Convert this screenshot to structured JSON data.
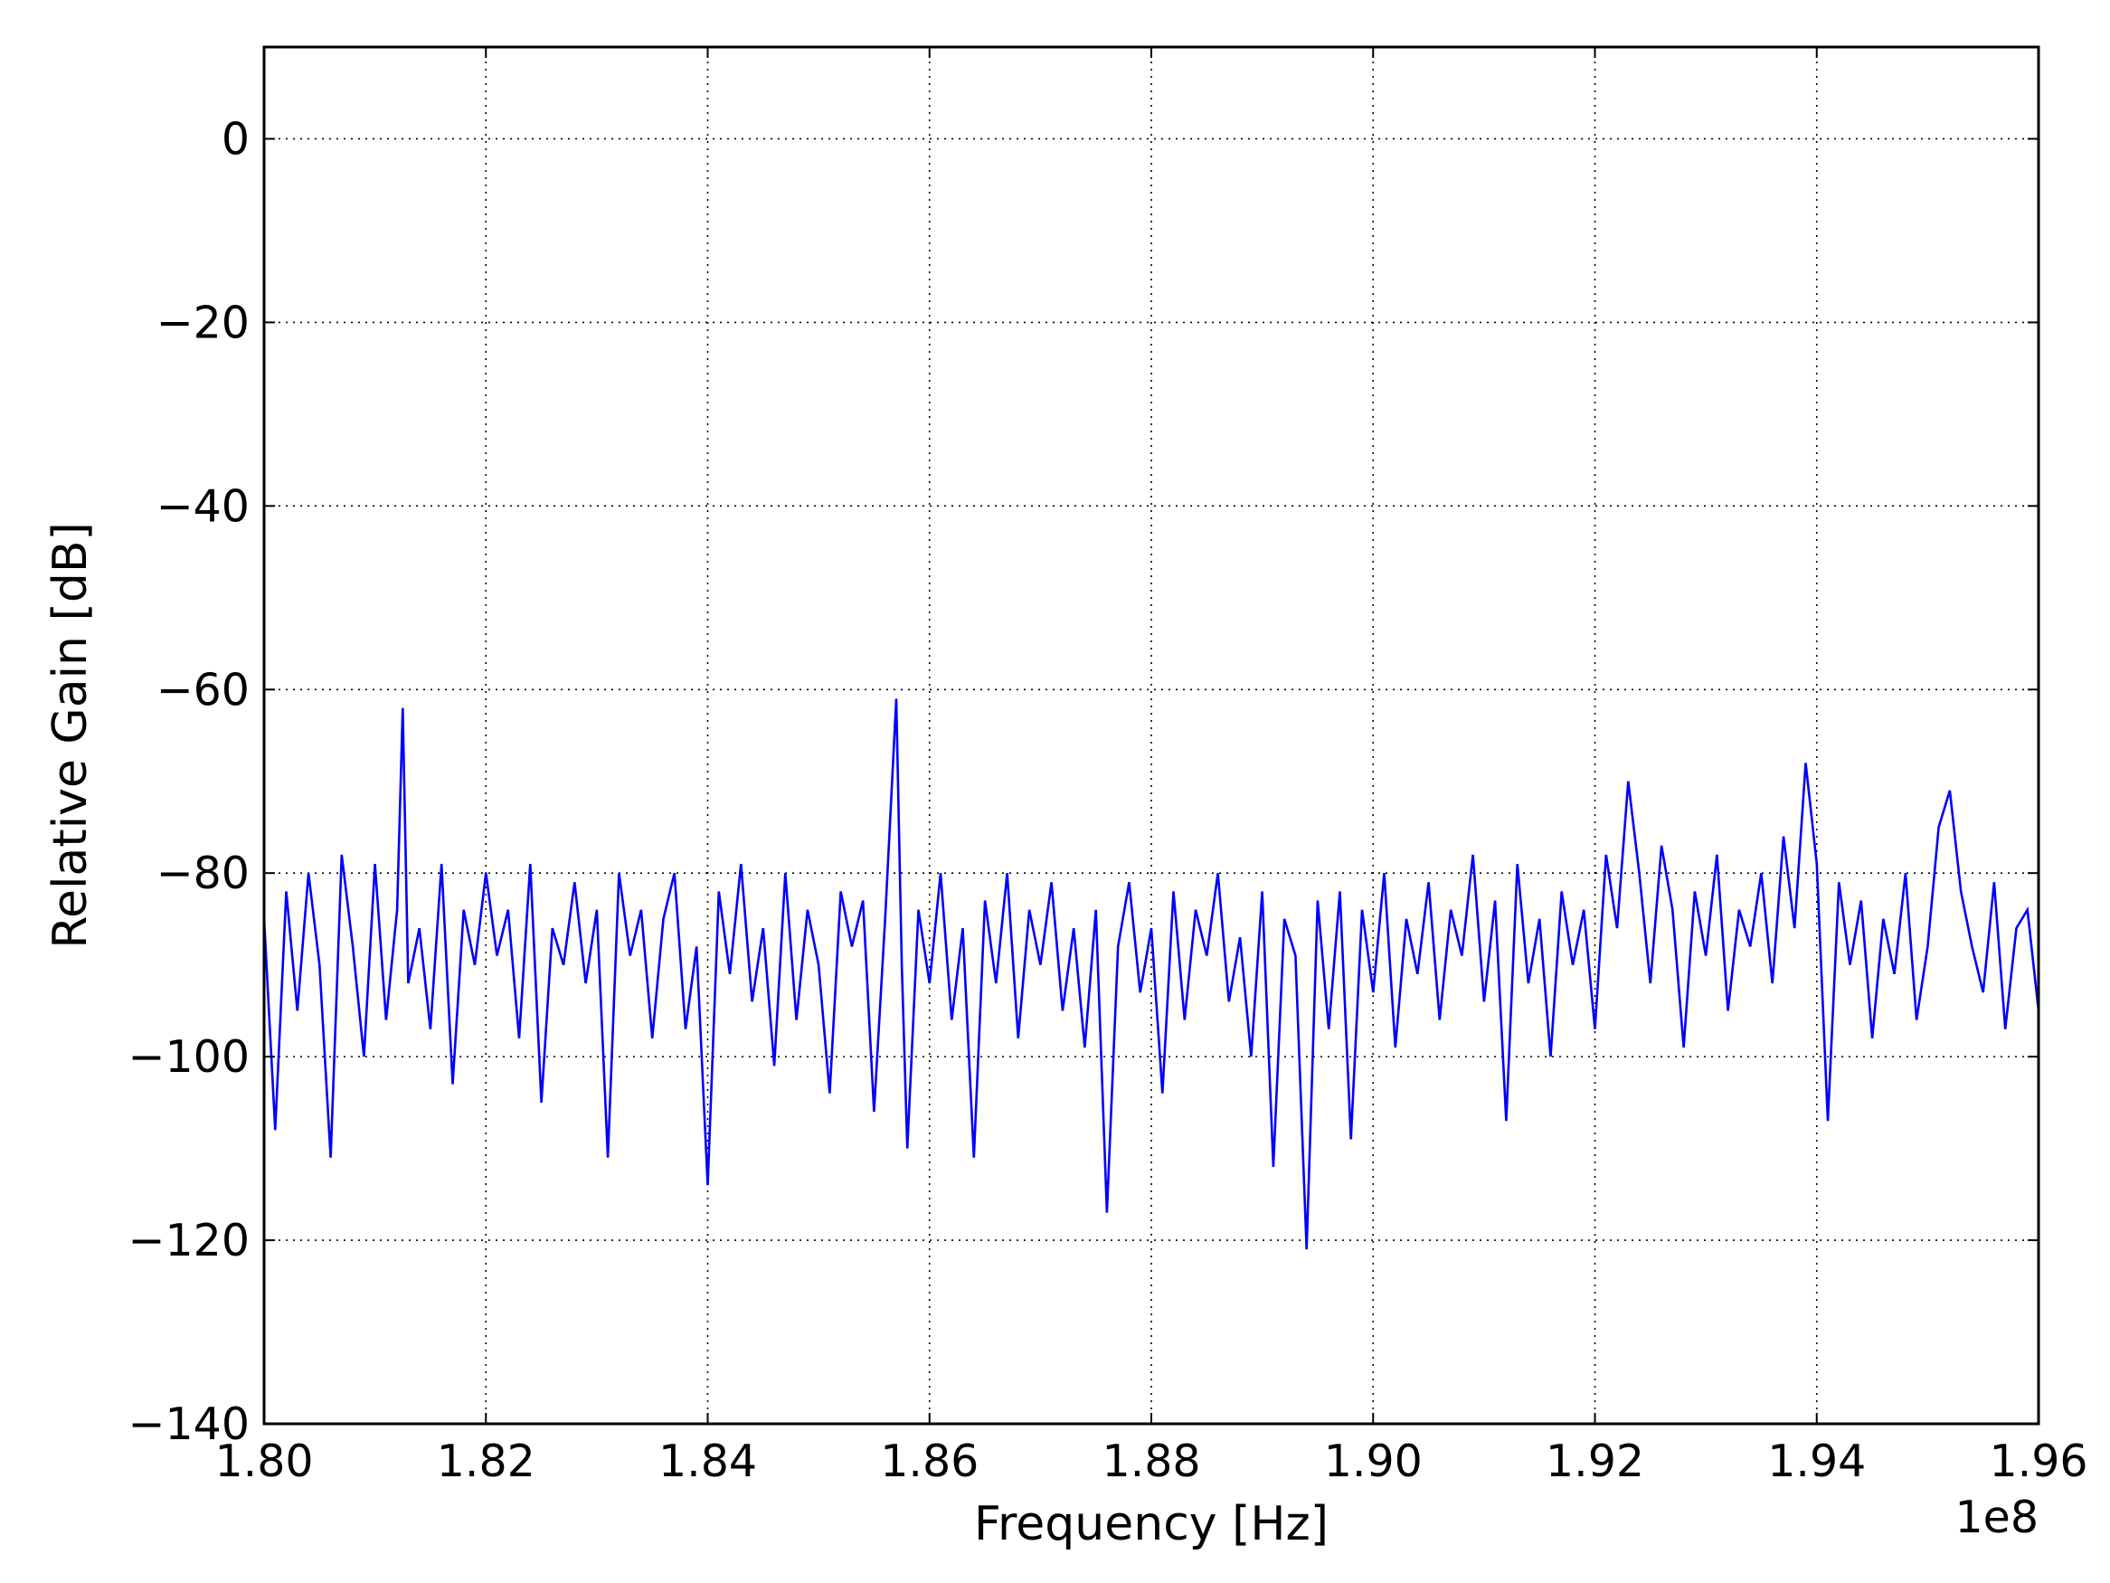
{
  "chart_data": {
    "type": "line",
    "title": "",
    "xlabel": "Frequency [Hz]",
    "ylabel": "Relative Gain [dB]",
    "x_offset_label": "1e8",
    "xlim": [
      180000000,
      196000000
    ],
    "ylim": [
      -140,
      10
    ],
    "x_ticks": [
      {
        "value": 180000000,
        "label": "1.80"
      },
      {
        "value": 182000000,
        "label": "1.82"
      },
      {
        "value": 184000000,
        "label": "1.84"
      },
      {
        "value": 186000000,
        "label": "1.86"
      },
      {
        "value": 188000000,
        "label": "1.88"
      },
      {
        "value": 190000000,
        "label": "1.90"
      },
      {
        "value": 192000000,
        "label": "1.92"
      },
      {
        "value": 194000000,
        "label": "1.94"
      },
      {
        "value": 196000000,
        "label": "1.96"
      }
    ],
    "y_ticks": [
      {
        "value": 0,
        "label": "0"
      },
      {
        "value": -20,
        "label": "−20"
      },
      {
        "value": -40,
        "label": "−40"
      },
      {
        "value": -60,
        "label": "−60"
      },
      {
        "value": -80,
        "label": "−80"
      },
      {
        "value": -100,
        "label": "−100"
      },
      {
        "value": -120,
        "label": "−120"
      },
      {
        "value": -140,
        "label": "−140"
      }
    ],
    "grid": true,
    "grid_style": "dotted",
    "series": [
      {
        "color": "#0000ff",
        "x": [
          180000000,
          180100000,
          180200000,
          180300000,
          180400000,
          180500000,
          180600000,
          180700000,
          180800000,
          180900000,
          181000000,
          181100000,
          181200000,
          181250000,
          181300000,
          181400000,
          181500000,
          181600000,
          181700000,
          181800000,
          181900000,
          182000000,
          182100000,
          182200000,
          182300000,
          182400000,
          182500000,
          182600000,
          182700000,
          182800000,
          182900000,
          183000000,
          183100000,
          183200000,
          183300000,
          183400000,
          183500000,
          183600000,
          183700000,
          183800000,
          183900000,
          184000000,
          184100000,
          184200000,
          184300000,
          184400000,
          184500000,
          184600000,
          184700000,
          184800000,
          184900000,
          185000000,
          185100000,
          185200000,
          185300000,
          185400000,
          185500000,
          185600000,
          185700000,
          185750000,
          185800000,
          185900000,
          186000000,
          186100000,
          186200000,
          186300000,
          186400000,
          186500000,
          186600000,
          186700000,
          186800000,
          186900000,
          187000000,
          187100000,
          187200000,
          187300000,
          187400000,
          187500000,
          187600000,
          187700000,
          187800000,
          187900000,
          188000000,
          188100000,
          188200000,
          188300000,
          188400000,
          188500000,
          188600000,
          188700000,
          188800000,
          188900000,
          189000000,
          189100000,
          189200000,
          189300000,
          189400000,
          189500000,
          189600000,
          189700000,
          189800000,
          189900000,
          190000000,
          190100000,
          190200000,
          190300000,
          190400000,
          190500000,
          190600000,
          190700000,
          190800000,
          190900000,
          191000000,
          191100000,
          191200000,
          191300000,
          191400000,
          191500000,
          191600000,
          191700000,
          191800000,
          191900000,
          192000000,
          192100000,
          192200000,
          192300000,
          192400000,
          192500000,
          192600000,
          192700000,
          192800000,
          192900000,
          193000000,
          193100000,
          193200000,
          193300000,
          193400000,
          193500000,
          193600000,
          193700000,
          193800000,
          193900000,
          194000000,
          194100000,
          194200000,
          194300000,
          194400000,
          194500000,
          194600000,
          194700000,
          194800000,
          194900000,
          195000000,
          195100000,
          195200000,
          195300000,
          195400000,
          195500000,
          195600000,
          195700000,
          195800000,
          195900000,
          196000000
        ],
        "y": [
          -85,
          -108,
          -82,
          -95,
          -80,
          -90,
          -111,
          -78,
          -88,
          -100,
          -79,
          -96,
          -84,
          -62,
          -92,
          -86,
          -97,
          -79,
          -103,
          -84,
          -90,
          -80,
          -89,
          -84,
          -98,
          -79,
          -105,
          -86,
          -90,
          -81,
          -92,
          -84,
          -111,
          -80,
          -89,
          -84,
          -98,
          -85,
          -80,
          -97,
          -88,
          -114,
          -82,
          -91,
          -79,
          -94,
          -86,
          -101,
          -80,
          -96,
          -84,
          -90,
          -104,
          -82,
          -88,
          -83,
          -106,
          -85,
          -61,
          -90,
          -110,
          -84,
          -92,
          -80,
          -96,
          -86,
          -111,
          -83,
          -92,
          -80,
          -98,
          -84,
          -90,
          -81,
          -95,
          -86,
          -99,
          -84,
          -117,
          -88,
          -81,
          -93,
          -86,
          -104,
          -82,
          -96,
          -84,
          -89,
          -80,
          -94,
          -87,
          -100,
          -82,
          -112,
          -85,
          -89,
          -121,
          -83,
          -97,
          -82,
          -109,
          -84,
          -93,
          -80,
          -99,
          -85,
          -91,
          -81,
          -96,
          -84,
          -89,
          -78,
          -94,
          -83,
          -107,
          -79,
          -92,
          -85,
          -100,
          -82,
          -90,
          -84,
          -97,
          -78,
          -86,
          -70,
          -80,
          -92,
          -77,
          -84,
          -99,
          -82,
          -89,
          -78,
          -95,
          -84,
          -88,
          -80,
          -92,
          -76,
          -86,
          -68,
          -79,
          -107,
          -81,
          -90,
          -83,
          -98,
          -85,
          -91,
          -80,
          -96,
          -88,
          -75,
          -71,
          -82,
          -88,
          -93,
          -81,
          -97,
          -86,
          -84,
          -95
        ]
      }
    ]
  }
}
